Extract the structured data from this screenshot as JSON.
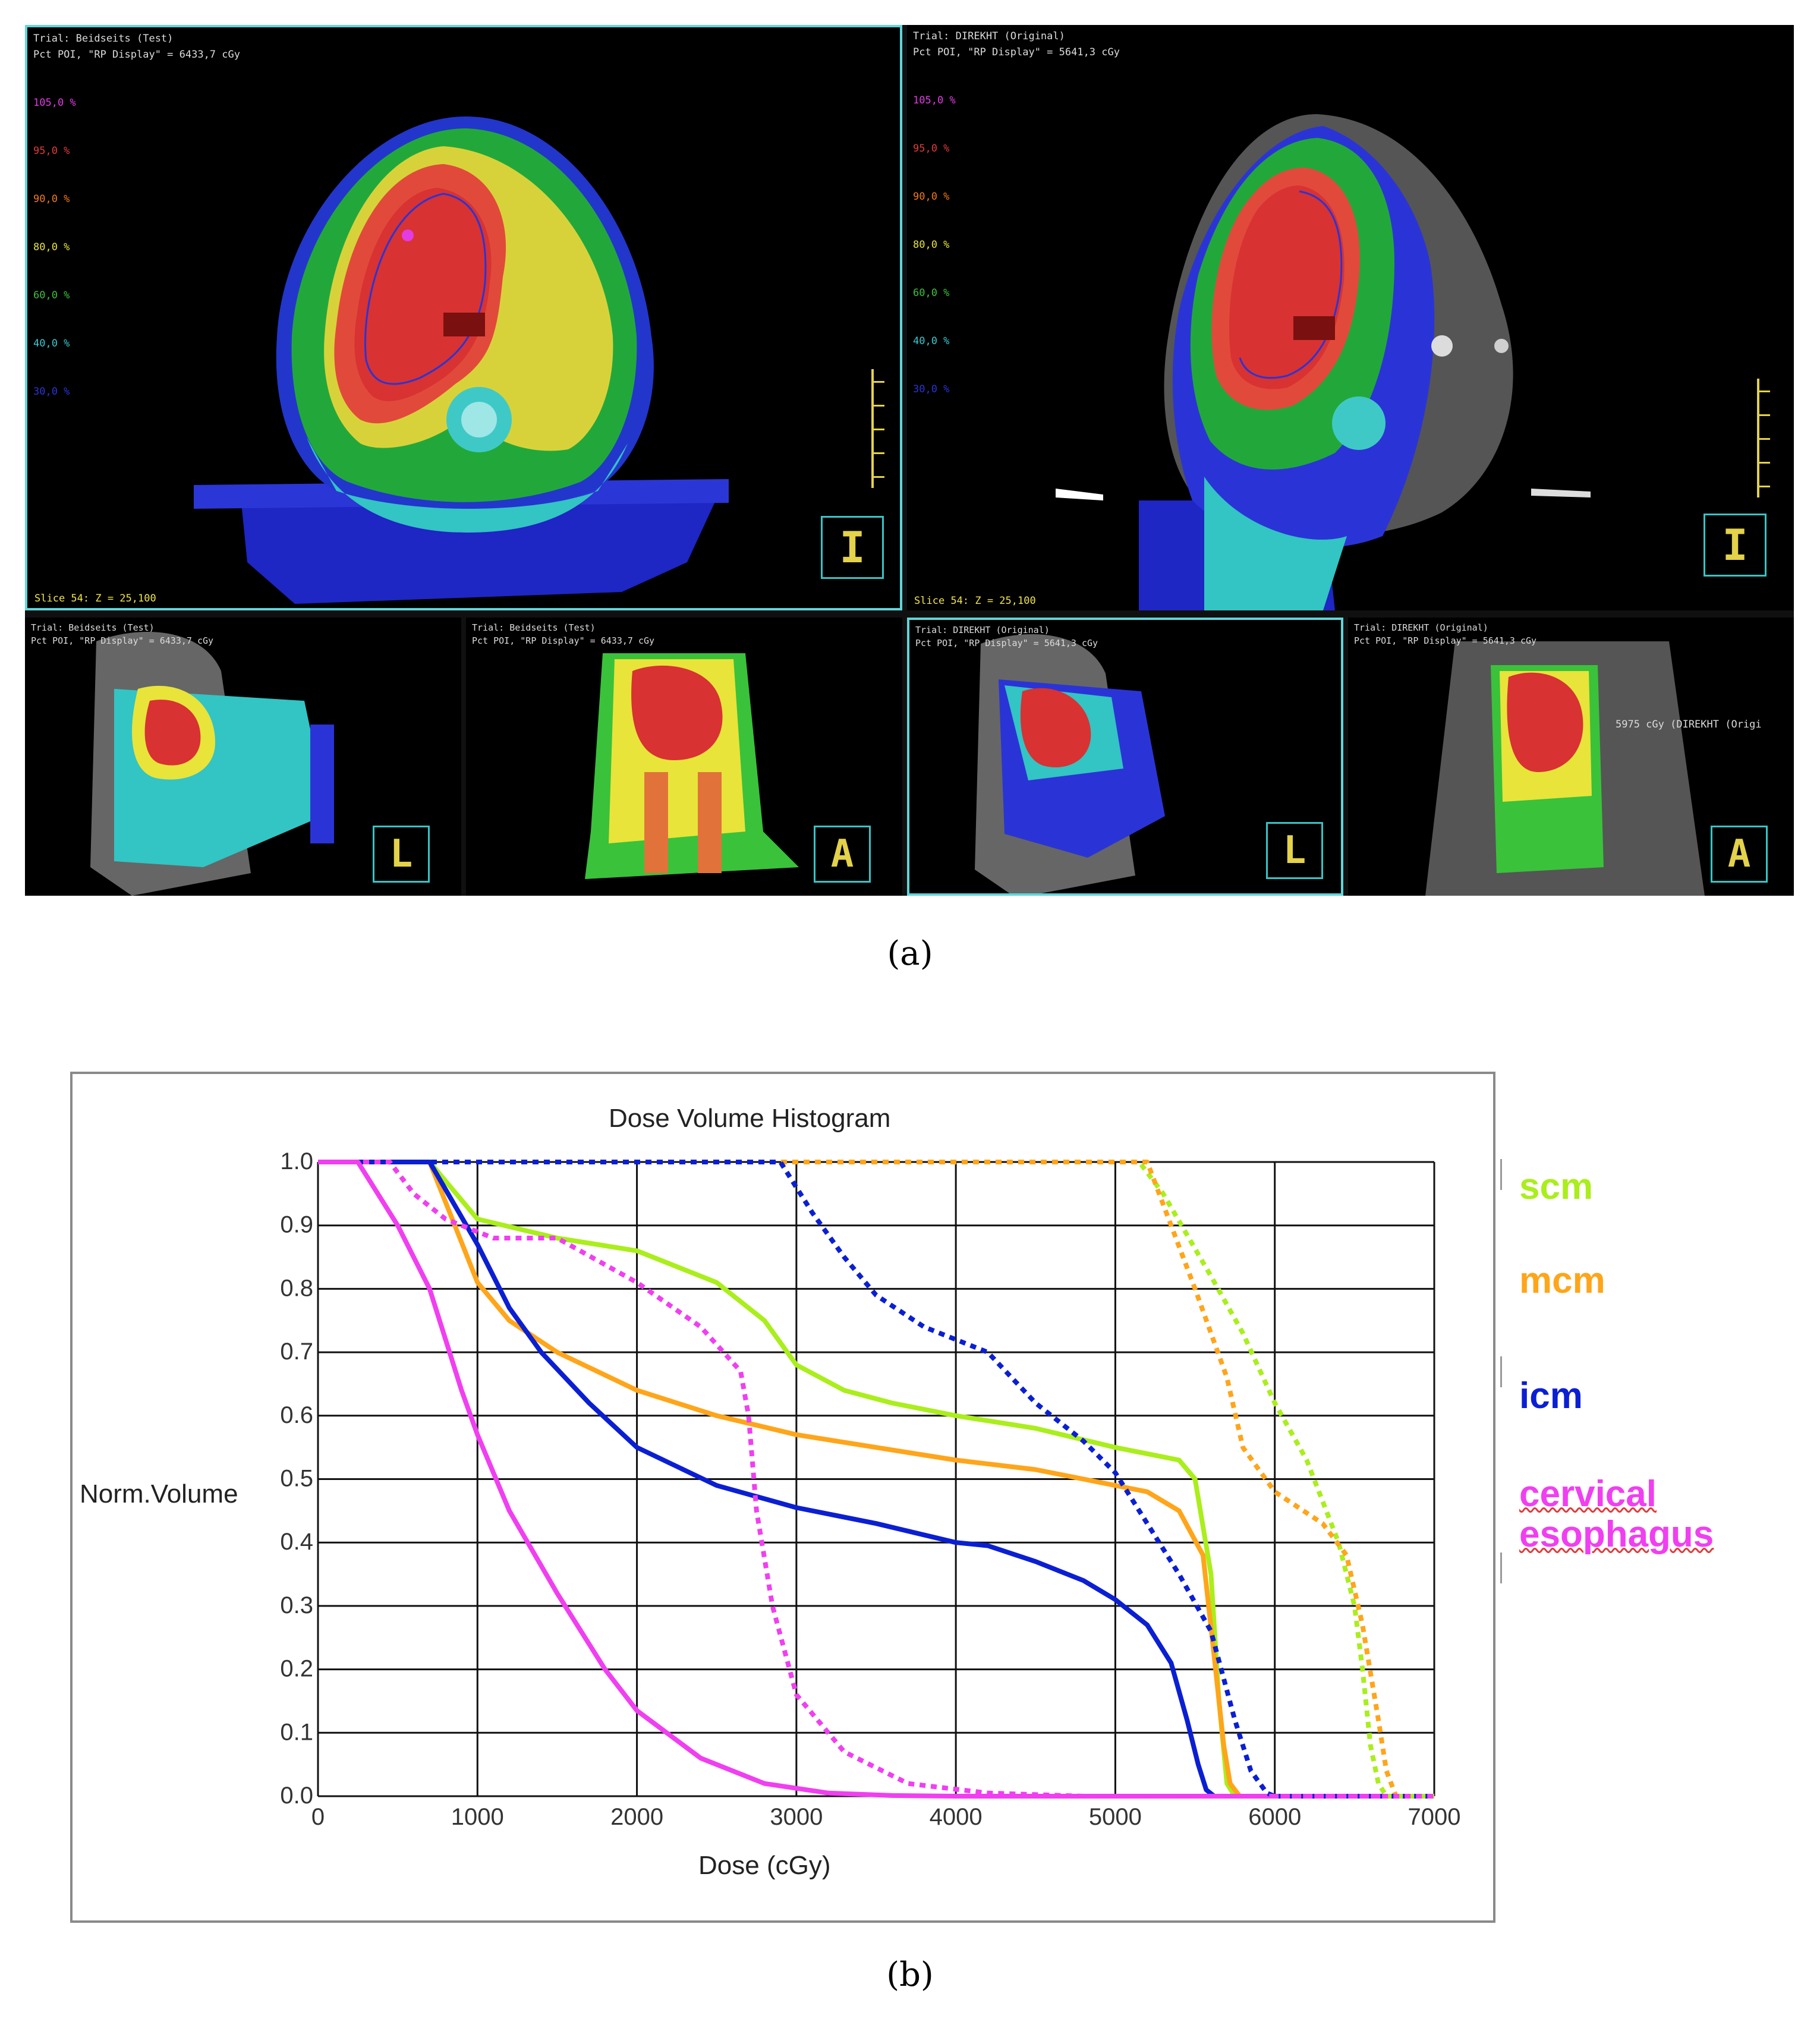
{
  "figure": {
    "caption_a": "(a)",
    "caption_b": "(b)"
  },
  "planning_views": {
    "dose_levels": [
      {
        "label": "105,0 %",
        "color": "#e23ce2"
      },
      {
        "label": "95,0 %",
        "color": "#e23a3a"
      },
      {
        "label": "90,0 %",
        "color": "#f07a1c"
      },
      {
        "label": "80,0 %",
        "color": "#e8e43a"
      },
      {
        "label": "60,0 %",
        "color": "#3ac23a"
      },
      {
        "label": "40,0 %",
        "color": "#36c8d0"
      },
      {
        "label": "30,0 %",
        "color": "#2a34d6"
      }
    ],
    "left": {
      "trial": "Trial: Beidseits (Test)",
      "poi": "Pct POI, \"RP Display\" = 6433,7 cGy",
      "slice": "Slice 54: Z = 25,100"
    },
    "right": {
      "trial": "Trial: DIREKHT (Original)",
      "poi": "Pct POI, \"RP Display\" = 5641,3 cGy",
      "slice": "Slice 54: Z = 25,100",
      "note": "5975 cGy (DIREKHT (Origi"
    },
    "orientation_labels": {
      "axial": "I",
      "sagittal": "L",
      "coronal": "A"
    }
  },
  "chart_data": {
    "type": "line",
    "title": "Dose Volume Histogram",
    "xlabel": "Dose (cGy)",
    "ylabel": "Norm.Volume",
    "xlim": [
      0,
      7000
    ],
    "ylim": [
      0,
      1
    ],
    "x_ticks": [
      "0",
      "1000",
      "2000",
      "3000",
      "4000",
      "5000",
      "6000",
      "7000"
    ],
    "y_ticks": [
      "0.0",
      "0.1",
      "0.2",
      "0.3",
      "0.4",
      "0.5",
      "0.6",
      "0.7",
      "0.8",
      "0.9",
      "1.0"
    ],
    "grid": true,
    "legend_position": "right",
    "legend": [
      {
        "label": "scm",
        "color": "#aaee1c"
      },
      {
        "label": "mcm",
        "color": "#ffa51a"
      },
      {
        "label": "icm",
        "color": "#0b1fd2"
      },
      {
        "label": "cervical esophagus",
        "color": "#f03ff0"
      }
    ],
    "series": [
      {
        "color": "#aaee1c",
        "style": "solid",
        "points": [
          [
            0,
            1
          ],
          [
            700,
            1
          ],
          [
            1000,
            0.91
          ],
          [
            1500,
            0.88
          ],
          [
            2000,
            0.86
          ],
          [
            2500,
            0.81
          ],
          [
            2800,
            0.75
          ],
          [
            3000,
            0.68
          ],
          [
            3300,
            0.64
          ],
          [
            3600,
            0.62
          ],
          [
            4000,
            0.6
          ],
          [
            4500,
            0.58
          ],
          [
            5000,
            0.55
          ],
          [
            5400,
            0.53
          ],
          [
            5500,
            0.5
          ],
          [
            5600,
            0.35
          ],
          [
            5650,
            0.15
          ],
          [
            5700,
            0.02
          ],
          [
            5750,
            0
          ],
          [
            7000,
            0
          ]
        ]
      },
      {
        "color": "#ffa51a",
        "style": "solid",
        "points": [
          [
            0,
            1
          ],
          [
            700,
            1
          ],
          [
            1000,
            0.81
          ],
          [
            1200,
            0.75
          ],
          [
            1500,
            0.7
          ],
          [
            2000,
            0.64
          ],
          [
            2500,
            0.6
          ],
          [
            3000,
            0.57
          ],
          [
            3500,
            0.55
          ],
          [
            4000,
            0.53
          ],
          [
            4500,
            0.515
          ],
          [
            5000,
            0.49
          ],
          [
            5200,
            0.48
          ],
          [
            5400,
            0.45
          ],
          [
            5550,
            0.38
          ],
          [
            5620,
            0.22
          ],
          [
            5680,
            0.08
          ],
          [
            5720,
            0.02
          ],
          [
            5780,
            0
          ],
          [
            7000,
            0
          ]
        ]
      },
      {
        "color": "#0b1fd2",
        "style": "solid",
        "points": [
          [
            0,
            1
          ],
          [
            700,
            1
          ],
          [
            1000,
            0.87
          ],
          [
            1200,
            0.77
          ],
          [
            1400,
            0.7
          ],
          [
            1700,
            0.62
          ],
          [
            2000,
            0.55
          ],
          [
            2500,
            0.49
          ],
          [
            3000,
            0.455
          ],
          [
            3500,
            0.43
          ],
          [
            4000,
            0.4
          ],
          [
            4200,
            0.395
          ],
          [
            4500,
            0.37
          ],
          [
            4800,
            0.34
          ],
          [
            5000,
            0.31
          ],
          [
            5200,
            0.27
          ],
          [
            5350,
            0.21
          ],
          [
            5450,
            0.12
          ],
          [
            5520,
            0.05
          ],
          [
            5570,
            0.01
          ],
          [
            5620,
            0
          ],
          [
            7000,
            0
          ]
        ]
      },
      {
        "color": "#f03ff0",
        "style": "solid",
        "points": [
          [
            0,
            1
          ],
          [
            250,
            1
          ],
          [
            500,
            0.9
          ],
          [
            700,
            0.8
          ],
          [
            900,
            0.64
          ],
          [
            1000,
            0.57
          ],
          [
            1200,
            0.45
          ],
          [
            1500,
            0.32
          ],
          [
            1800,
            0.2
          ],
          [
            2000,
            0.135
          ],
          [
            2400,
            0.06
          ],
          [
            2800,
            0.02
          ],
          [
            3200,
            0.005
          ],
          [
            3600,
            0.001
          ],
          [
            4000,
            0
          ],
          [
            7000,
            0
          ]
        ]
      },
      {
        "color": "#aaee1c",
        "style": "dotted",
        "points": [
          [
            0,
            1
          ],
          [
            5150,
            1
          ],
          [
            5300,
            0.95
          ],
          [
            5600,
            0.82
          ],
          [
            5800,
            0.73
          ],
          [
            6000,
            0.62
          ],
          [
            6200,
            0.53
          ],
          [
            6400,
            0.4
          ],
          [
            6500,
            0.3
          ],
          [
            6550,
            0.2
          ],
          [
            6600,
            0.08
          ],
          [
            6650,
            0.02
          ],
          [
            6700,
            0
          ],
          [
            7000,
            0
          ]
        ]
      },
      {
        "color": "#ffa51a",
        "style": "dotted",
        "points": [
          [
            0,
            1
          ],
          [
            5200,
            1
          ],
          [
            5350,
            0.9
          ],
          [
            5500,
            0.8
          ],
          [
            5700,
            0.66
          ],
          [
            5800,
            0.55
          ],
          [
            6000,
            0.48
          ],
          [
            6300,
            0.43
          ],
          [
            6450,
            0.38
          ],
          [
            6550,
            0.27
          ],
          [
            6650,
            0.12
          ],
          [
            6700,
            0.04
          ],
          [
            6760,
            0
          ],
          [
            7000,
            0
          ]
        ]
      },
      {
        "color": "#0b1fd2",
        "style": "dotted",
        "points": [
          [
            0,
            1
          ],
          [
            2900,
            1
          ],
          [
            3100,
            0.92
          ],
          [
            3300,
            0.85
          ],
          [
            3500,
            0.79
          ],
          [
            3800,
            0.74
          ],
          [
            4200,
            0.7
          ],
          [
            4500,
            0.62
          ],
          [
            4800,
            0.56
          ],
          [
            5000,
            0.51
          ],
          [
            5200,
            0.43
          ],
          [
            5400,
            0.35
          ],
          [
            5600,
            0.26
          ],
          [
            5750,
            0.12
          ],
          [
            5850,
            0.04
          ],
          [
            5950,
            0.005
          ],
          [
            6000,
            0
          ],
          [
            7000,
            0
          ]
        ]
      },
      {
        "color": "#f03ff0",
        "style": "dotted",
        "points": [
          [
            0,
            1
          ],
          [
            450,
            1
          ],
          [
            600,
            0.95
          ],
          [
            800,
            0.91
          ],
          [
            1100,
            0.88
          ],
          [
            1500,
            0.88
          ],
          [
            2000,
            0.81
          ],
          [
            2400,
            0.74
          ],
          [
            2650,
            0.67
          ],
          [
            2700,
            0.6
          ],
          [
            2750,
            0.45
          ],
          [
            2850,
            0.3
          ],
          [
            3000,
            0.16
          ],
          [
            3300,
            0.07
          ],
          [
            3700,
            0.02
          ],
          [
            4200,
            0.005
          ],
          [
            4800,
            0
          ],
          [
            7000,
            0
          ]
        ]
      }
    ]
  }
}
